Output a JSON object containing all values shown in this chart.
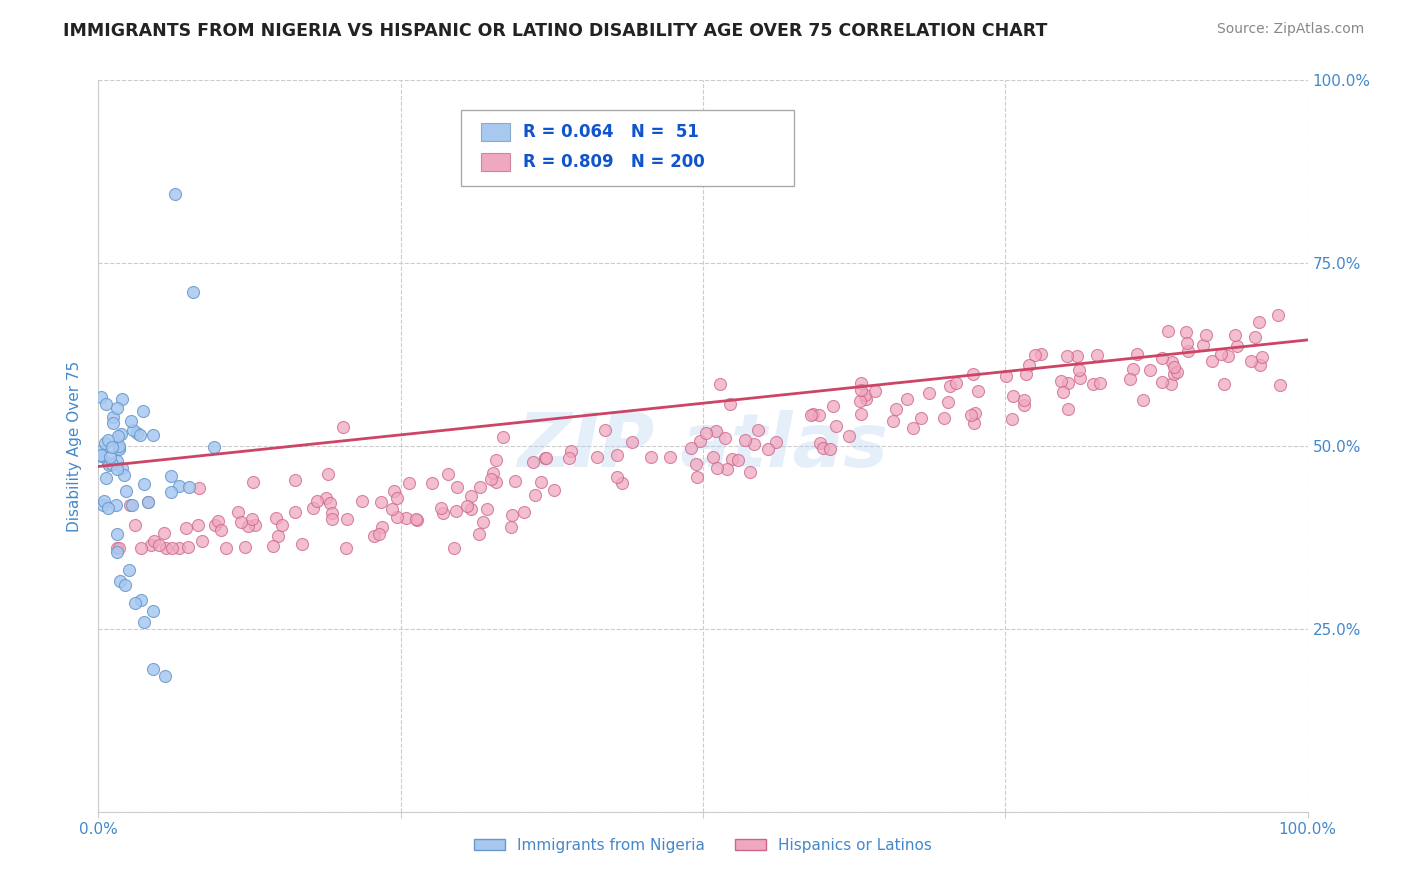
{
  "title": "IMMIGRANTS FROM NIGERIA VS HISPANIC OR LATINO DISABILITY AGE OVER 75 CORRELATION CHART",
  "source": "Source: ZipAtlas.com",
  "ylabel": "Disability Age Over 75",
  "xlim": [
    0.0,
    1.0
  ],
  "ylim": [
    0.0,
    1.0
  ],
  "scatter1_color": "#a8c8f0",
  "scatter1_edge": "#6699cc",
  "scatter2_color": "#f0a8c0",
  "scatter2_edge": "#cc6688",
  "line2_color": "#cc4466",
  "axis_color": "#4488cc",
  "grid_color": "#cccccc",
  "background_color": "#ffffff",
  "R1": 0.064,
  "N1": 51,
  "R2": 0.809,
  "N2": 200,
  "line_y_start": 0.472,
  "line_y_end": 0.645
}
